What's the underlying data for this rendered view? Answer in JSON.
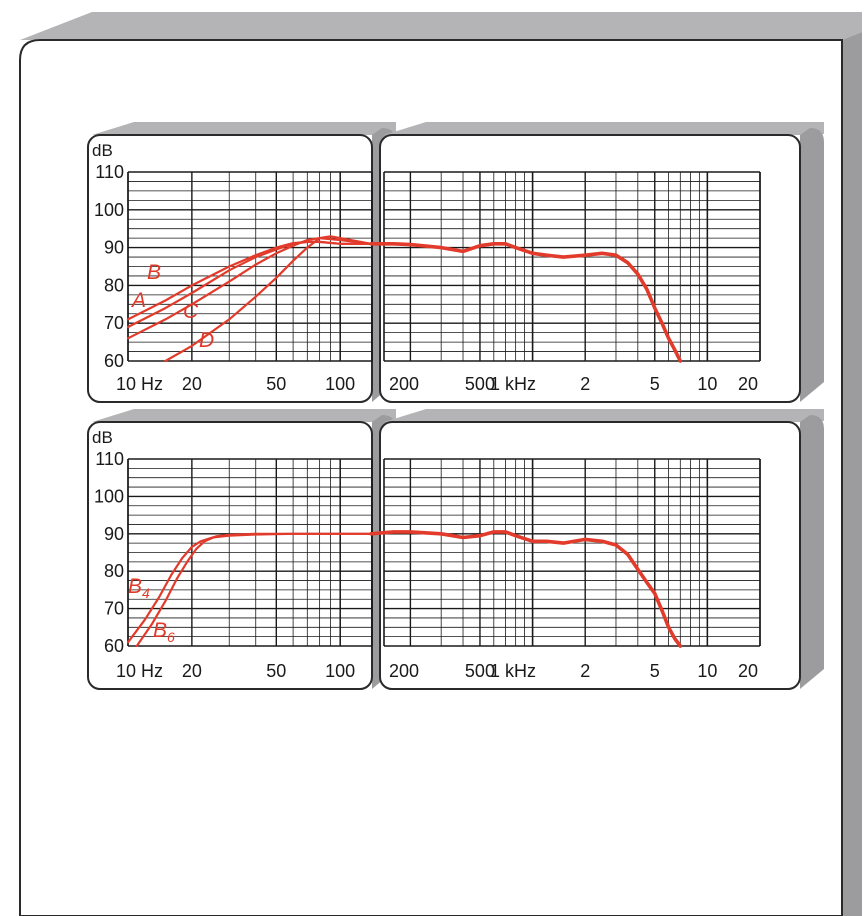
{
  "colors": {
    "page": "#ffffff",
    "frame_top": "#b4b4b6",
    "frame_side": "#9c9c9e",
    "frame_outline": "#2a2a2a",
    "grid": "#1a1a1a",
    "curve": "#e23b2b"
  },
  "chart_data": [
    {
      "type": "line",
      "panel": "top",
      "ylabel": "dB",
      "ylim": [
        60,
        110
      ],
      "xlim_hz": [
        10,
        20000
      ],
      "x_scale": "log",
      "y_ticks": [
        "60",
        "70",
        "80",
        "90",
        "100",
        "110"
      ],
      "x_ticks": [
        {
          "label": "10 Hz",
          "hz": 10
        },
        {
          "label": "20",
          "hz": 20
        },
        {
          "label": "50",
          "hz": 50
        },
        {
          "label": "100",
          "hz": 100
        },
        {
          "label": "200",
          "hz": 200
        },
        {
          "label": "500",
          "hz": 500
        },
        {
          "label": "1 kHz",
          "hz": 1000
        },
        {
          "label": "2",
          "hz": 2000
        },
        {
          "label": "5",
          "hz": 5000
        },
        {
          "label": "10",
          "hz": 10000
        },
        {
          "label": "20",
          "hz": 20000
        }
      ],
      "series": [
        {
          "name": "A",
          "x": [
            10,
            15,
            20,
            30,
            40,
            50,
            60,
            70,
            80,
            100,
            140
          ],
          "y": [
            69,
            74,
            78,
            84,
            87.5,
            89.5,
            91,
            91.5,
            91.5,
            91,
            91
          ]
        },
        {
          "name": "B",
          "x": [
            10,
            15,
            20,
            30,
            40,
            50,
            60,
            70,
            80,
            100,
            140
          ],
          "y": [
            71,
            76,
            80,
            85,
            88,
            90,
            91.2,
            91.5,
            91.5,
            91,
            91
          ]
        },
        {
          "name": "C",
          "x": [
            10,
            15,
            20,
            30,
            40,
            50,
            60,
            70,
            80,
            100,
            140
          ],
          "y": [
            66,
            71,
            75,
            81,
            85.5,
            88.5,
            90.5,
            92,
            92.5,
            92,
            91
          ]
        },
        {
          "name": "D",
          "x": [
            15,
            20,
            30,
            40,
            50,
            60,
            70,
            80,
            90,
            100,
            140
          ],
          "y": [
            60,
            64,
            71,
            77,
            82,
            86.5,
            90,
            92.5,
            93,
            92.5,
            91
          ]
        },
        {
          "x": [
            140,
            160,
            200,
            300,
            400,
            500,
            600,
            700,
            800,
            1000,
            1200,
            1500,
            2000,
            2500,
            3000,
            3500,
            4000,
            4500,
            5000,
            5500,
            6000,
            6500,
            7000
          ],
          "y": [
            91,
            91,
            90.8,
            90,
            89,
            90.5,
            91,
            91,
            90,
            88.5,
            88,
            87.5,
            88,
            88.5,
            88,
            86,
            83,
            79,
            74,
            70,
            66,
            63,
            60
          ]
        }
      ]
    },
    {
      "type": "line",
      "panel": "bottom",
      "ylabel": "dB",
      "ylim": [
        60,
        110
      ],
      "xlim_hz": [
        10,
        20000
      ],
      "x_scale": "log",
      "y_ticks": [
        "60",
        "70",
        "80",
        "90",
        "100",
        "110"
      ],
      "x_ticks": [
        {
          "label": "10 Hz",
          "hz": 10
        },
        {
          "label": "20",
          "hz": 20
        },
        {
          "label": "50",
          "hz": 50
        },
        {
          "label": "100",
          "hz": 100
        },
        {
          "label": "200",
          "hz": 200
        },
        {
          "label": "500",
          "hz": 500
        },
        {
          "label": "1 kHz",
          "hz": 1000
        },
        {
          "label": "2",
          "hz": 2000
        },
        {
          "label": "5",
          "hz": 5000
        },
        {
          "label": "10",
          "hz": 10000
        },
        {
          "label": "20",
          "hz": 20000
        }
      ],
      "series": [
        {
          "name": "B4",
          "x": [
            10,
            12,
            14,
            16,
            18,
            20,
            22,
            25,
            30,
            40,
            60,
            100,
            140
          ],
          "y": [
            61,
            67,
            73,
            79,
            83.5,
            86.5,
            88,
            89,
            89.5,
            89.8,
            90,
            90,
            90
          ]
        },
        {
          "name": "B6",
          "x": [
            11,
            13,
            15,
            17,
            19,
            21,
            23,
            26,
            30,
            40,
            60,
            100,
            140
          ],
          "y": [
            60,
            66,
            72,
            78,
            82.5,
            86,
            88,
            89.3,
            89.7,
            90,
            90,
            90,
            90
          ]
        },
        {
          "x": [
            140,
            160,
            200,
            300,
            400,
            500,
            600,
            700,
            800,
            1000,
            1200,
            1500,
            2000,
            2500,
            3000,
            3500,
            4000,
            4500,
            5000,
            5500,
            6000,
            6500,
            7000
          ],
          "y": [
            90,
            90.5,
            90.5,
            90,
            89,
            89.5,
            90.5,
            90.5,
            89.5,
            88,
            88,
            87.5,
            88.5,
            88,
            87,
            84.5,
            80.5,
            77,
            74,
            69.5,
            65,
            62,
            60
          ]
        }
      ]
    }
  ]
}
